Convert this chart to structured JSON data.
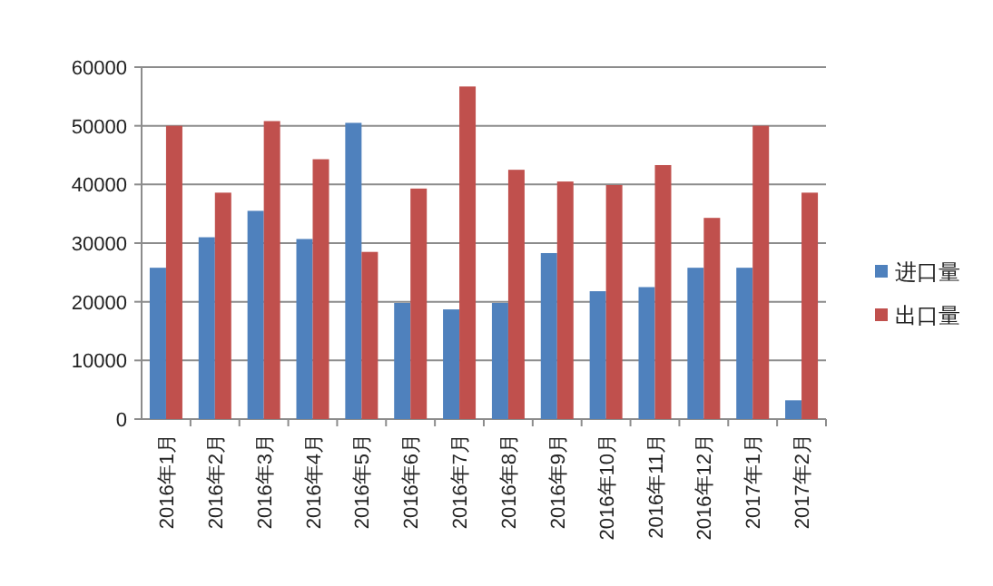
{
  "chart_data": {
    "type": "bar",
    "categories": [
      "2016年1月",
      "2016年2月",
      "2016年3月",
      "2016年4月",
      "2016年5月",
      "2016年6月",
      "2016年7月",
      "2016年8月",
      "2016年9月",
      "2016年10月",
      "2016年11月",
      "2016年12月",
      "2017年1月",
      "2017年2月"
    ],
    "series": [
      {
        "name": "进口量",
        "color": "#4f81bd",
        "values": [
          25800,
          31000,
          35500,
          30700,
          50500,
          19800,
          18700,
          19800,
          28300,
          21800,
          22500,
          25800,
          25800,
          3200
        ]
      },
      {
        "name": "出口量",
        "color": "#c0504d",
        "values": [
          50000,
          38600,
          50800,
          44300,
          28500,
          39300,
          56700,
          42500,
          40500,
          39900,
          43300,
          34300,
          50000,
          38600
        ]
      }
    ],
    "ylim": [
      0,
      60000
    ],
    "yticks": [
      0,
      10000,
      20000,
      30000,
      40000,
      50000,
      60000
    ],
    "grid": "y",
    "legend": "right"
  }
}
